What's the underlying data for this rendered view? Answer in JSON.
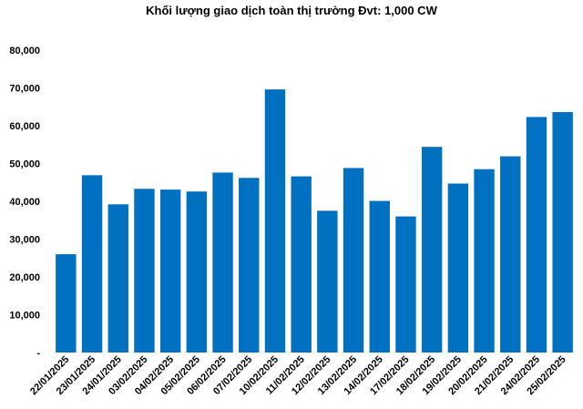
{
  "chart_data": {
    "type": "bar",
    "title": "Khối lượng giao dịch toàn thị trường Đvt: 1,000 CW",
    "xlabel": "",
    "ylabel": "",
    "ylim": [
      0,
      80000
    ],
    "y_ticks": [
      {
        "value": 0,
        "label": "-"
      },
      {
        "value": 10000,
        "label": "10,000"
      },
      {
        "value": 20000,
        "label": "20,000"
      },
      {
        "value": 30000,
        "label": "30,000"
      },
      {
        "value": 40000,
        "label": "40,000"
      },
      {
        "value": 50000,
        "label": "50,000"
      },
      {
        "value": 60000,
        "label": "60,000"
      },
      {
        "value": 70000,
        "label": "70,000"
      },
      {
        "value": 80000,
        "label": "80,000"
      }
    ],
    "grid": false,
    "legend": "none",
    "bar_color": "#0070C0",
    "categories": [
      "22/01/2025",
      "23/01/2025",
      "24/01/2025",
      "03/02/2025",
      "04/02/2025",
      "05/02/2025",
      "06/02/2025",
      "07/02/2025",
      "10/02/2025",
      "11/02/2025",
      "12/02/2025",
      "13/02/2025",
      "14/02/2025",
      "17/02/2025",
      "18/02/2025",
      "19/02/2025",
      "20/02/2025",
      "21/02/2025",
      "24/02/2025",
      "25/02/2025"
    ],
    "values": [
      26000,
      46900,
      39200,
      43300,
      43100,
      42600,
      47600,
      46200,
      69600,
      46600,
      37500,
      48800,
      40100,
      36000,
      54400,
      44700,
      48500,
      51900,
      62300,
      63600
    ]
  }
}
